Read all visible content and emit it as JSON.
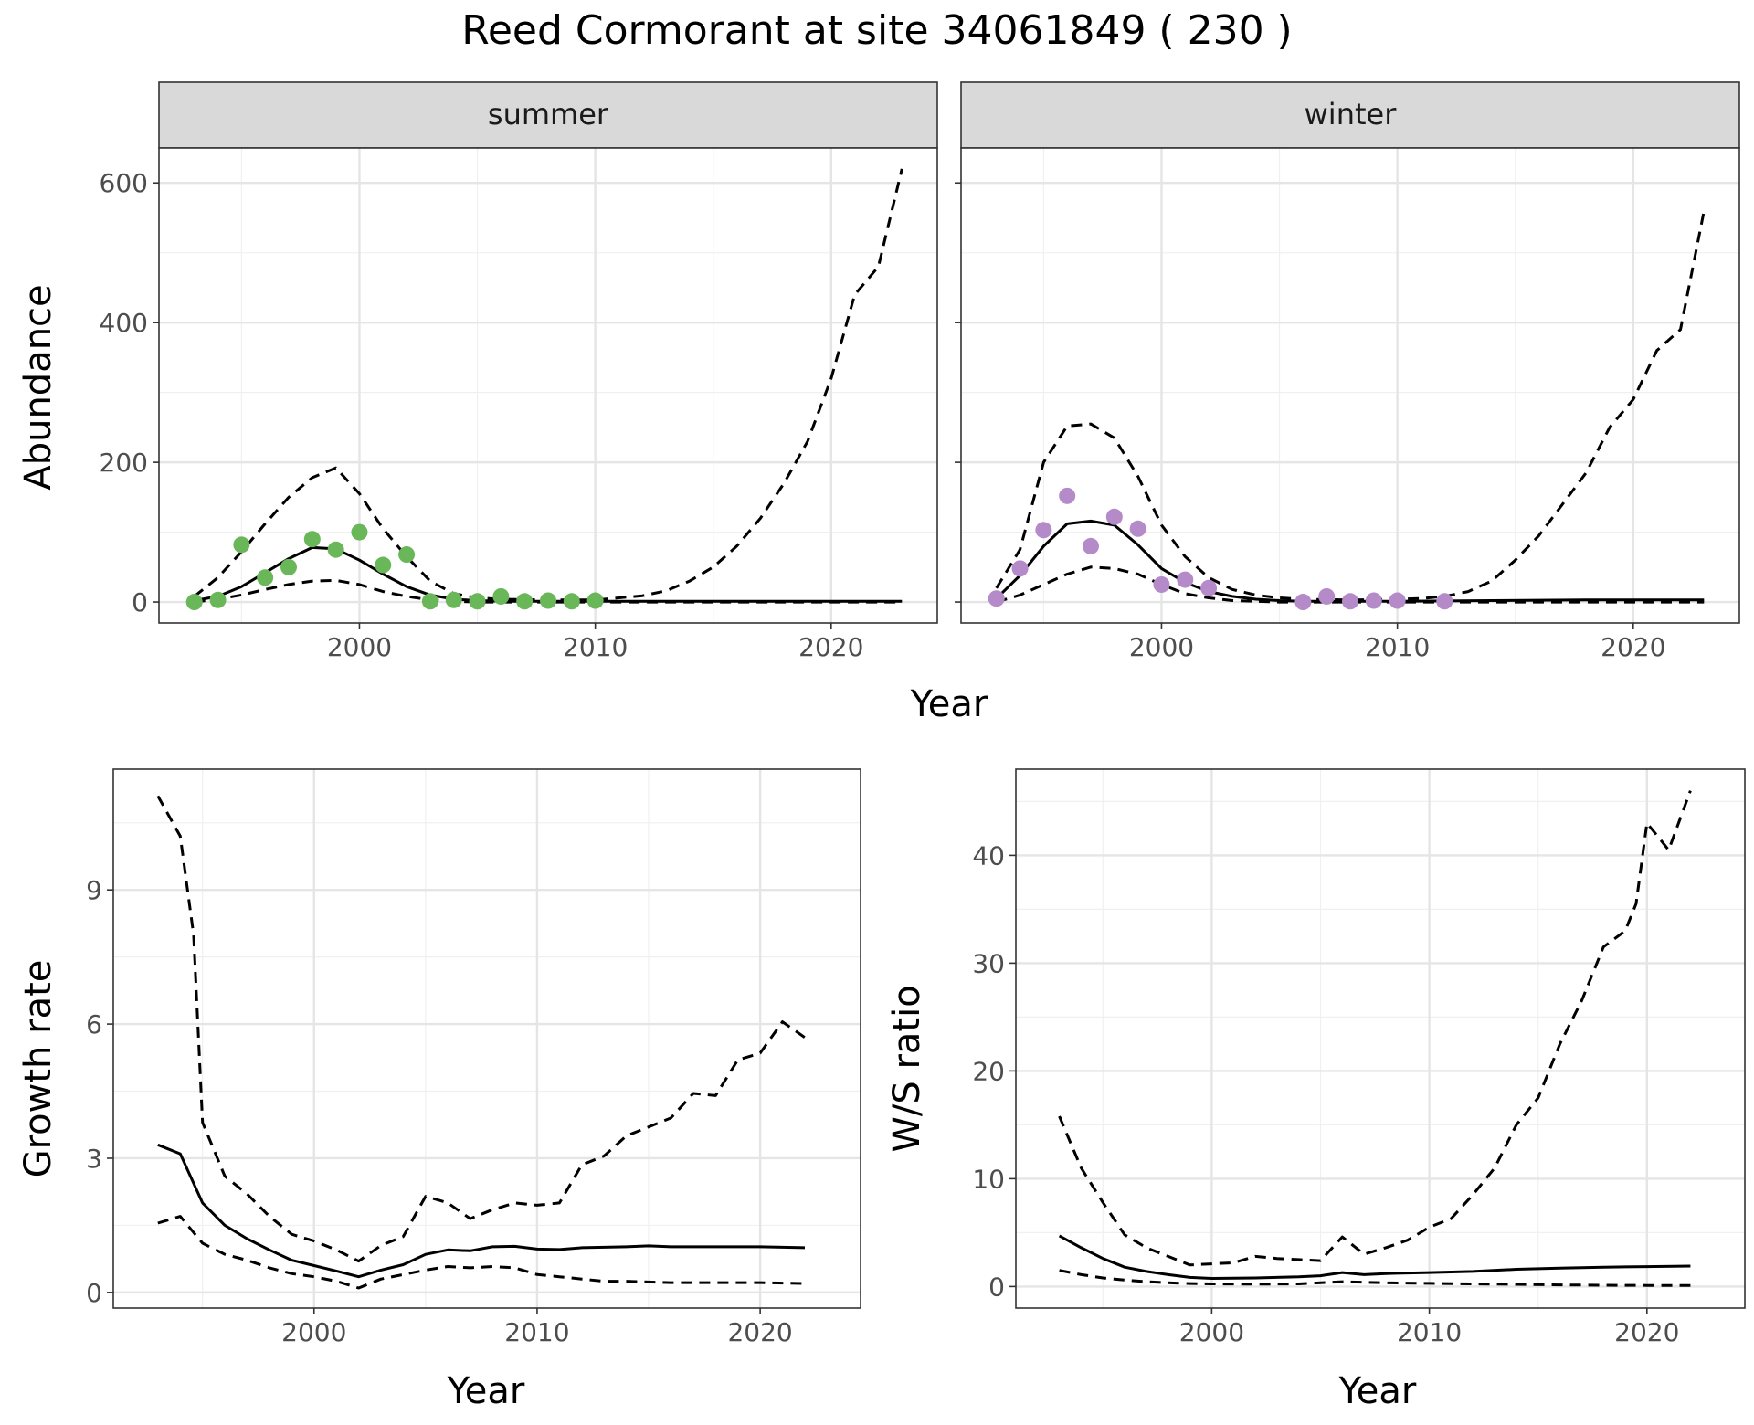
{
  "title": "Reed Cormorant at site 34061849 ( 230 )",
  "chart_data": [
    {
      "id": "abundance-summer",
      "type": "line",
      "strip_label": "summer",
      "xlabel": "Year",
      "ylabel": "Abundance",
      "xlim": [
        1991.5,
        2024.5
      ],
      "ylim": [
        -30,
        650
      ],
      "x_ticks": [
        2000,
        2010,
        2020
      ],
      "y_ticks": [
        0,
        200,
        400,
        600
      ],
      "point_color": "#6ab75a",
      "points": {
        "x": [
          1993,
          1994,
          1995,
          1996,
          1997,
          1998,
          1999,
          2000,
          2001,
          2002,
          2003,
          2004,
          2005,
          2006,
          2007,
          2008,
          2009,
          2010
        ],
        "y": [
          0,
          3,
          82,
          35,
          50,
          90,
          75,
          100,
          53,
          68,
          1,
          3,
          1,
          8,
          1,
          2,
          1,
          2
        ]
      },
      "series": [
        {
          "name": "mean",
          "style": "solid",
          "x": [
            1993,
            1994,
            1995,
            1996,
            1997,
            1998,
            1999,
            2000,
            2001,
            2002,
            2003,
            2004,
            2005,
            2006,
            2008,
            2010,
            2014,
            2018,
            2023
          ],
          "y": [
            2,
            8,
            22,
            42,
            62,
            78,
            76,
            60,
            40,
            22,
            10,
            4,
            2,
            1,
            1,
            1,
            1,
            1,
            1
          ]
        },
        {
          "name": "upper",
          "style": "dashed",
          "x": [
            1993,
            1994,
            1995,
            1996,
            1997,
            1998,
            1999,
            2000,
            2001,
            2002,
            2003,
            2004,
            2005,
            2006,
            2008,
            2010,
            2011,
            2012,
            2013,
            2014,
            2015,
            2016,
            2017,
            2018,
            2019,
            2020,
            2021,
            2022,
            2023
          ],
          "y": [
            8,
            35,
            72,
            112,
            150,
            178,
            192,
            155,
            105,
            65,
            30,
            12,
            6,
            4,
            3,
            3,
            6,
            9,
            16,
            30,
            50,
            80,
            120,
            170,
            230,
            320,
            440,
            480,
            620
          ]
        },
        {
          "name": "lower",
          "style": "dashed",
          "x": [
            1993,
            1994,
            1995,
            1996,
            1997,
            1998,
            1999,
            2000,
            2001,
            2002,
            2003,
            2004,
            2005,
            2010,
            2023
          ],
          "y": [
            0,
            4,
            10,
            18,
            25,
            30,
            31,
            25,
            15,
            8,
            3,
            1,
            0,
            0,
            0
          ]
        }
      ]
    },
    {
      "id": "abundance-winter",
      "type": "line",
      "strip_label": "winter",
      "xlabel": "Year",
      "ylabel": "Abundance",
      "xlim": [
        1991.5,
        2024.5
      ],
      "ylim": [
        -30,
        650
      ],
      "x_ticks": [
        2000,
        2010,
        2020
      ],
      "y_ticks": [
        0,
        200,
        400,
        600
      ],
      "point_color": "#b48ac8",
      "points": {
        "x": [
          1993,
          1994,
          1995,
          1996,
          1997,
          1998,
          1999,
          2000,
          2001,
          2002,
          2006,
          2007,
          2008,
          2009,
          2010,
          2012
        ],
        "y": [
          5,
          48,
          103,
          152,
          80,
          122,
          105,
          25,
          32,
          20,
          0,
          8,
          1,
          2,
          2,
          1
        ]
      },
      "series": [
        {
          "name": "mean",
          "style": "solid",
          "x": [
            1993,
            1994,
            1995,
            1996,
            1997,
            1998,
            1999,
            2000,
            2001,
            2002,
            2003,
            2004,
            2005,
            2006,
            2008,
            2010,
            2014,
            2018,
            2023
          ],
          "y": [
            5,
            38,
            80,
            112,
            116,
            110,
            82,
            48,
            28,
            15,
            8,
            4,
            2,
            1,
            1,
            1,
            2,
            3,
            3
          ]
        },
        {
          "name": "upper",
          "style": "dashed",
          "x": [
            1993,
            1994,
            1995,
            1996,
            1997,
            1998,
            1999,
            2000,
            2001,
            2002,
            2003,
            2004,
            2005,
            2006,
            2008,
            2010,
            2011,
            2012,
            2013,
            2014,
            2015,
            2016,
            2017,
            2018,
            2019,
            2020,
            2021,
            2022,
            2023
          ],
          "y": [
            20,
            75,
            200,
            252,
            255,
            235,
            180,
            110,
            65,
            35,
            18,
            10,
            6,
            4,
            3,
            4,
            5,
            8,
            15,
            30,
            60,
            95,
            140,
            185,
            250,
            290,
            360,
            390,
            560
          ]
        },
        {
          "name": "lower",
          "style": "dashed",
          "x": [
            1993,
            1994,
            1995,
            1996,
            1997,
            1998,
            1999,
            2000,
            2001,
            2002,
            2003,
            2004,
            2005,
            2010,
            2023
          ],
          "y": [
            0,
            10,
            25,
            40,
            50,
            48,
            40,
            25,
            12,
            6,
            2,
            1,
            0,
            0,
            0
          ]
        }
      ]
    },
    {
      "id": "growth-rate",
      "type": "line",
      "xlabel": "Year",
      "ylabel": "Growth rate",
      "xlim": [
        1991.0,
        2024.5
      ],
      "ylim": [
        -0.35,
        11.7
      ],
      "x_ticks": [
        2000,
        2010,
        2020
      ],
      "y_ticks": [
        0,
        3,
        6,
        9
      ],
      "series": [
        {
          "name": "mean",
          "style": "solid",
          "x": [
            1993,
            1994,
            1995,
            1996,
            1997,
            1998,
            1999,
            2000,
            2001,
            2002,
            2003,
            2004,
            2005,
            2006,
            2007,
            2008,
            2009,
            2010,
            2011,
            2012,
            2013,
            2014,
            2015,
            2016,
            2018,
            2020,
            2022
          ],
          "y": [
            3.3,
            3.1,
            2.0,
            1.5,
            1.2,
            0.95,
            0.72,
            0.6,
            0.48,
            0.35,
            0.5,
            0.62,
            0.85,
            0.95,
            0.93,
            1.02,
            1.03,
            0.97,
            0.96,
            1.0,
            1.01,
            1.02,
            1.04,
            1.02,
            1.02,
            1.02,
            1.0
          ]
        },
        {
          "name": "upper",
          "style": "dashed",
          "x": [
            1993,
            1994,
            1994.6,
            1995,
            1996,
            1997,
            1998,
            1999,
            2000,
            2001,
            2002,
            2003,
            2004,
            2005,
            2006,
            2007,
            2008,
            2009,
            2010,
            2011,
            2012,
            2013,
            2014,
            2015,
            2016,
            2017,
            2018,
            2019,
            2020,
            2021,
            2022
          ],
          "y": [
            11.1,
            10.2,
            8.0,
            3.8,
            2.6,
            2.2,
            1.7,
            1.3,
            1.15,
            0.95,
            0.7,
            1.05,
            1.25,
            2.15,
            2.0,
            1.65,
            1.85,
            2.0,
            1.95,
            2.0,
            2.85,
            3.05,
            3.5,
            3.7,
            3.9,
            4.45,
            4.4,
            5.2,
            5.35,
            6.05,
            5.7
          ]
        },
        {
          "name": "lower",
          "style": "dashed",
          "x": [
            1993,
            1994,
            1995,
            1996,
            1997,
            1998,
            1999,
            2000,
            2001,
            2002,
            2003,
            2004,
            2005,
            2006,
            2007,
            2008,
            2009,
            2010,
            2011,
            2012,
            2013,
            2014,
            2016,
            2018,
            2020,
            2022
          ],
          "y": [
            1.55,
            1.7,
            1.1,
            0.85,
            0.72,
            0.55,
            0.42,
            0.35,
            0.25,
            0.1,
            0.3,
            0.4,
            0.5,
            0.58,
            0.55,
            0.58,
            0.55,
            0.4,
            0.35,
            0.3,
            0.25,
            0.25,
            0.22,
            0.22,
            0.22,
            0.2
          ]
        }
      ]
    },
    {
      "id": "ws-ratio",
      "type": "line",
      "xlabel": "Year",
      "ylabel": "W/S ratio",
      "xlim": [
        1991.0,
        2024.5
      ],
      "ylim": [
        -2,
        48
      ],
      "x_ticks": [
        2000,
        2010,
        2020
      ],
      "y_ticks": [
        0,
        10,
        20,
        30,
        40
      ],
      "series": [
        {
          "name": "mean",
          "style": "solid",
          "x": [
            1993,
            1994,
            1995,
            1996,
            1997,
            1998,
            1999,
            2000,
            2002,
            2004,
            2005,
            2006,
            2007,
            2008,
            2010,
            2012,
            2014,
            2016,
            2018,
            2020,
            2022
          ],
          "y": [
            4.7,
            3.6,
            2.6,
            1.8,
            1.4,
            1.1,
            0.85,
            0.75,
            0.8,
            0.9,
            1.0,
            1.3,
            1.1,
            1.2,
            1.3,
            1.4,
            1.6,
            1.7,
            1.8,
            1.85,
            1.9
          ]
        },
        {
          "name": "upper",
          "style": "dashed",
          "x": [
            1993,
            1994,
            1995,
            1996,
            1997,
            1998,
            1999,
            2000,
            2001,
            2002,
            2003,
            2004,
            2005,
            2006,
            2007,
            2008,
            2009,
            2010,
            2011,
            2012,
            2013,
            2014,
            2015,
            2016,
            2017,
            2018,
            2019,
            2019.5,
            2020,
            2021,
            2022
          ],
          "y": [
            15.8,
            11.0,
            7.8,
            4.8,
            3.6,
            2.8,
            2.0,
            2.1,
            2.2,
            2.8,
            2.6,
            2.5,
            2.4,
            4.6,
            3.0,
            3.6,
            4.3,
            5.5,
            6.3,
            8.5,
            11.0,
            15.0,
            17.5,
            22.5,
            26.5,
            31.5,
            33.0,
            35.5,
            43.0,
            40.5,
            46.0
          ]
        },
        {
          "name": "lower",
          "style": "dashed",
          "x": [
            1993,
            1994,
            1995,
            1996,
            1997,
            1998,
            1999,
            2000,
            2002,
            2004,
            2006,
            2008,
            2010,
            2012,
            2014,
            2016,
            2018,
            2020,
            2022
          ],
          "y": [
            1.5,
            1.1,
            0.8,
            0.6,
            0.45,
            0.35,
            0.28,
            0.25,
            0.22,
            0.25,
            0.45,
            0.35,
            0.3,
            0.25,
            0.2,
            0.15,
            0.12,
            0.1,
            0.1
          ]
        }
      ]
    }
  ]
}
